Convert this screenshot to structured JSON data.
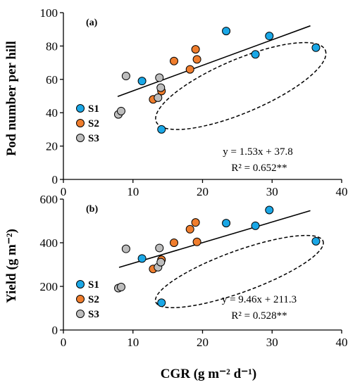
{
  "colors": {
    "S1": "#1aa7e6",
    "S2": "#ef7d2d",
    "S3": "#bdbdbd"
  },
  "chart_data": [
    {
      "type": "scatter",
      "panel_label": "(a)",
      "title": "",
      "xlabel": "",
      "ylabel": "Pod number per hill",
      "xlim": [
        0,
        40
      ],
      "ylim": [
        0,
        100
      ],
      "xticks": [
        "0",
        "10",
        "20",
        "30",
        "40"
      ],
      "yticks": [
        "0",
        "20",
        "40",
        "60",
        "80",
        "100"
      ],
      "legend": [
        "S1",
        "S2",
        "S3"
      ],
      "legend_position": "lower-left",
      "equation": "y = 1.53x + 37.8",
      "r2": "R² = 0.652**",
      "trendline": {
        "slope": 1.53,
        "intercept": 37.8,
        "x_range": [
          7.8,
          35.5
        ]
      },
      "ellipse": {
        "cx": 25.5,
        "cy": 56,
        "rx": 13.2,
        "ry": 16,
        "angle_deg": -23
      },
      "series": [
        {
          "name": "S1",
          "points": [
            [
              11.3,
              59
            ],
            [
              14.1,
              30
            ],
            [
              23.4,
              89
            ],
            [
              27.6,
              75
            ],
            [
              29.6,
              86
            ],
            [
              36.3,
              79
            ]
          ]
        },
        {
          "name": "S2",
          "points": [
            [
              12.9,
              48
            ],
            [
              14.1,
              53
            ],
            [
              15.9,
              71
            ],
            [
              18.2,
              66
            ],
            [
              19.0,
              78
            ],
            [
              19.2,
              72
            ]
          ]
        },
        {
          "name": "S3",
          "points": [
            [
              7.9,
              39
            ],
            [
              8.3,
              41
            ],
            [
              9.0,
              62
            ],
            [
              13.6,
              49
            ],
            [
              13.8,
              61
            ],
            [
              14.0,
              55
            ]
          ]
        }
      ]
    },
    {
      "type": "scatter",
      "panel_label": "(b)",
      "title": "",
      "xlabel": "CGR (g m⁻² d⁻¹)",
      "ylabel": "Yield (g m⁻²)",
      "xlim": [
        0,
        40
      ],
      "ylim": [
        0,
        600
      ],
      "xticks": [
        "0",
        "10",
        "20",
        "30",
        "40"
      ],
      "yticks": [
        "0",
        "200",
        "400",
        "600"
      ],
      "legend": [
        "S1",
        "S2",
        "S3"
      ],
      "legend_position": "lower-left",
      "equation": "y = 9.46x + 211.3",
      "r2": "R² = 0.528**",
      "trendline": {
        "slope": 9.46,
        "intercept": 211.3,
        "x_range": [
          8.0,
          35.5
        ]
      },
      "ellipse": {
        "cx": 25.3,
        "cy": 268,
        "rx": 12.8,
        "ry": 95,
        "angle_deg": -20
      },
      "series": [
        {
          "name": "S1",
          "points": [
            [
              11.3,
              328
            ],
            [
              14.1,
              125
            ],
            [
              23.4,
              490
            ],
            [
              27.6,
              478
            ],
            [
              29.6,
              550
            ],
            [
              36.3,
              407
            ]
          ]
        },
        {
          "name": "S2",
          "points": [
            [
              12.9,
              280
            ],
            [
              14.1,
              322
            ],
            [
              15.9,
              400
            ],
            [
              18.2,
              462
            ],
            [
              19.0,
              493
            ],
            [
              19.2,
              404
            ]
          ]
        },
        {
          "name": "S3",
          "points": [
            [
              7.9,
              192
            ],
            [
              8.3,
              197
            ],
            [
              9.0,
              372
            ],
            [
              13.6,
              288
            ],
            [
              13.8,
              376
            ],
            [
              14.0,
              311
            ]
          ]
        }
      ]
    }
  ]
}
